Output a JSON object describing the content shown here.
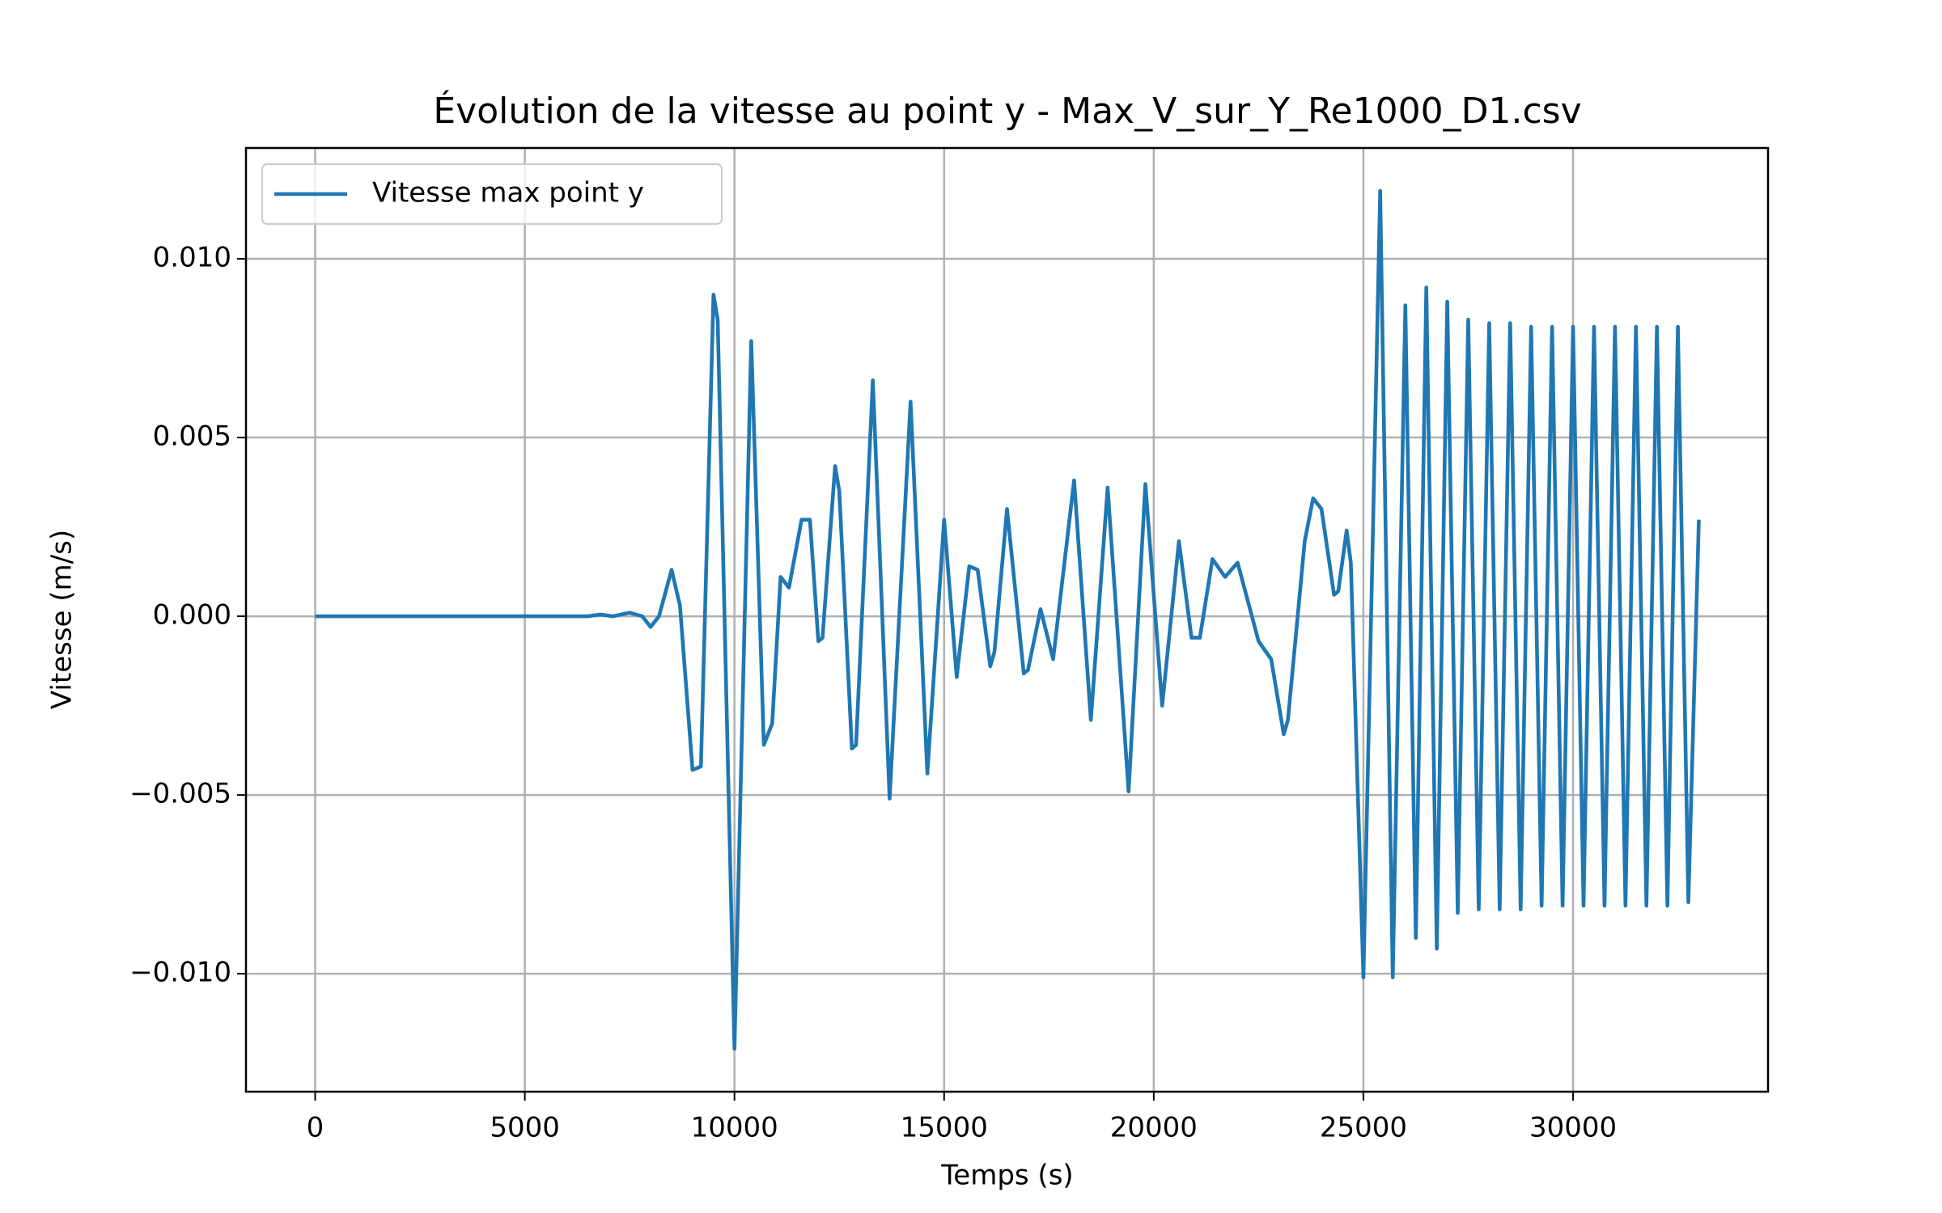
{
  "chart_data": {
    "type": "line",
    "title": "Évolution de la vitesse au point y - Max_V_sur_Y_Re1000_D1.csv",
    "x_label": "Temps (s)",
    "y_label": "Vitesse (m/s)",
    "x": [
      0,
      1000,
      2000,
      3000,
      4000,
      5000,
      6000,
      6500,
      6800,
      7100,
      7500,
      7800,
      8000,
      8200,
      8500,
      8700,
      9000,
      9200,
      9500,
      9600,
      10000,
      10400,
      10700,
      10900,
      11100,
      11300,
      11600,
      11800,
      12000,
      12100,
      12400,
      12500,
      12800,
      12900,
      13300,
      13700,
      14200,
      14600,
      15000,
      15300,
      15600,
      15800,
      16100,
      16200,
      16500,
      16900,
      17000,
      17300,
      17600,
      18100,
      18500,
      18900,
      19400,
      19800,
      20200,
      20600,
      20900,
      21100,
      21400,
      21700,
      22000,
      22500,
      22800,
      23100,
      23200,
      23600,
      23800,
      24000,
      24300,
      24400,
      24600,
      24700,
      25000,
      25400,
      25700,
      26000,
      26250,
      26500,
      26750,
      27000,
      27250,
      27500,
      27750,
      28000,
      28250,
      28500,
      28750,
      29000,
      29250,
      29500,
      29750,
      30000,
      30250,
      30500,
      30750,
      31000,
      31250,
      31500,
      31750,
      32000,
      32250,
      32500,
      32750,
      33000
    ],
    "series": [
      {
        "name": "Vitesse max point y",
        "color": "#1f77b4",
        "values": [
          0,
          0,
          0,
          0,
          0,
          0,
          0,
          0,
          5e-05,
          0,
          0.0001,
          0,
          -0.0003,
          0,
          0.0013,
          0.0003,
          -0.0043,
          -0.0042,
          0.009,
          0.0083,
          -0.0121,
          0.0077,
          -0.0036,
          -0.003,
          0.0011,
          0.0008,
          0.0027,
          0.0027,
          -0.0007,
          -0.0006,
          0.0042,
          0.0035,
          -0.0037,
          -0.0036,
          0.0066,
          -0.0051,
          0.006,
          -0.0044,
          0.0027,
          -0.0017,
          0.0014,
          0.0013,
          -0.0014,
          -0.001,
          0.003,
          -0.0016,
          -0.0015,
          0.0002,
          -0.0012,
          0.0038,
          -0.0029,
          0.0036,
          -0.0049,
          0.0037,
          -0.0025,
          0.0021,
          -0.0006,
          -0.0006,
          0.0016,
          0.0011,
          0.0015,
          -0.0007,
          -0.0012,
          -0.0033,
          -0.0029,
          0.0021,
          0.0033,
          0.003,
          0.0006,
          0.0007,
          0.0024,
          0.0015,
          -0.0101,
          0.0119,
          -0.0101,
          0.0087,
          -0.009,
          0.0092,
          -0.0093,
          0.0088,
          -0.0083,
          0.0083,
          -0.0082,
          0.0082,
          -0.0082,
          0.0082,
          -0.0082,
          0.0081,
          -0.0081,
          0.0081,
          -0.0081,
          0.0081,
          -0.0081,
          0.0081,
          -0.0081,
          0.0081,
          -0.0081,
          0.0081,
          -0.0081,
          0.0081,
          -0.0081,
          0.0081,
          -0.008,
          0.0027
        ]
      }
    ],
    "xlim": [
      -1650,
      34650
    ],
    "ylim": [
      -0.0133,
      0.0131
    ],
    "xticks": [
      0,
      5000,
      10000,
      15000,
      20000,
      25000,
      30000
    ],
    "yticks": [
      {
        "value": -0.01,
        "label": "−0.010"
      },
      {
        "value": -0.005,
        "label": "−0.005"
      },
      {
        "value": 0,
        "label": "0.000"
      },
      {
        "value": 0.005,
        "label": "0.005"
      },
      {
        "value": 0.01,
        "label": "0.010"
      }
    ],
    "grid": true,
    "legend": "upper left"
  }
}
